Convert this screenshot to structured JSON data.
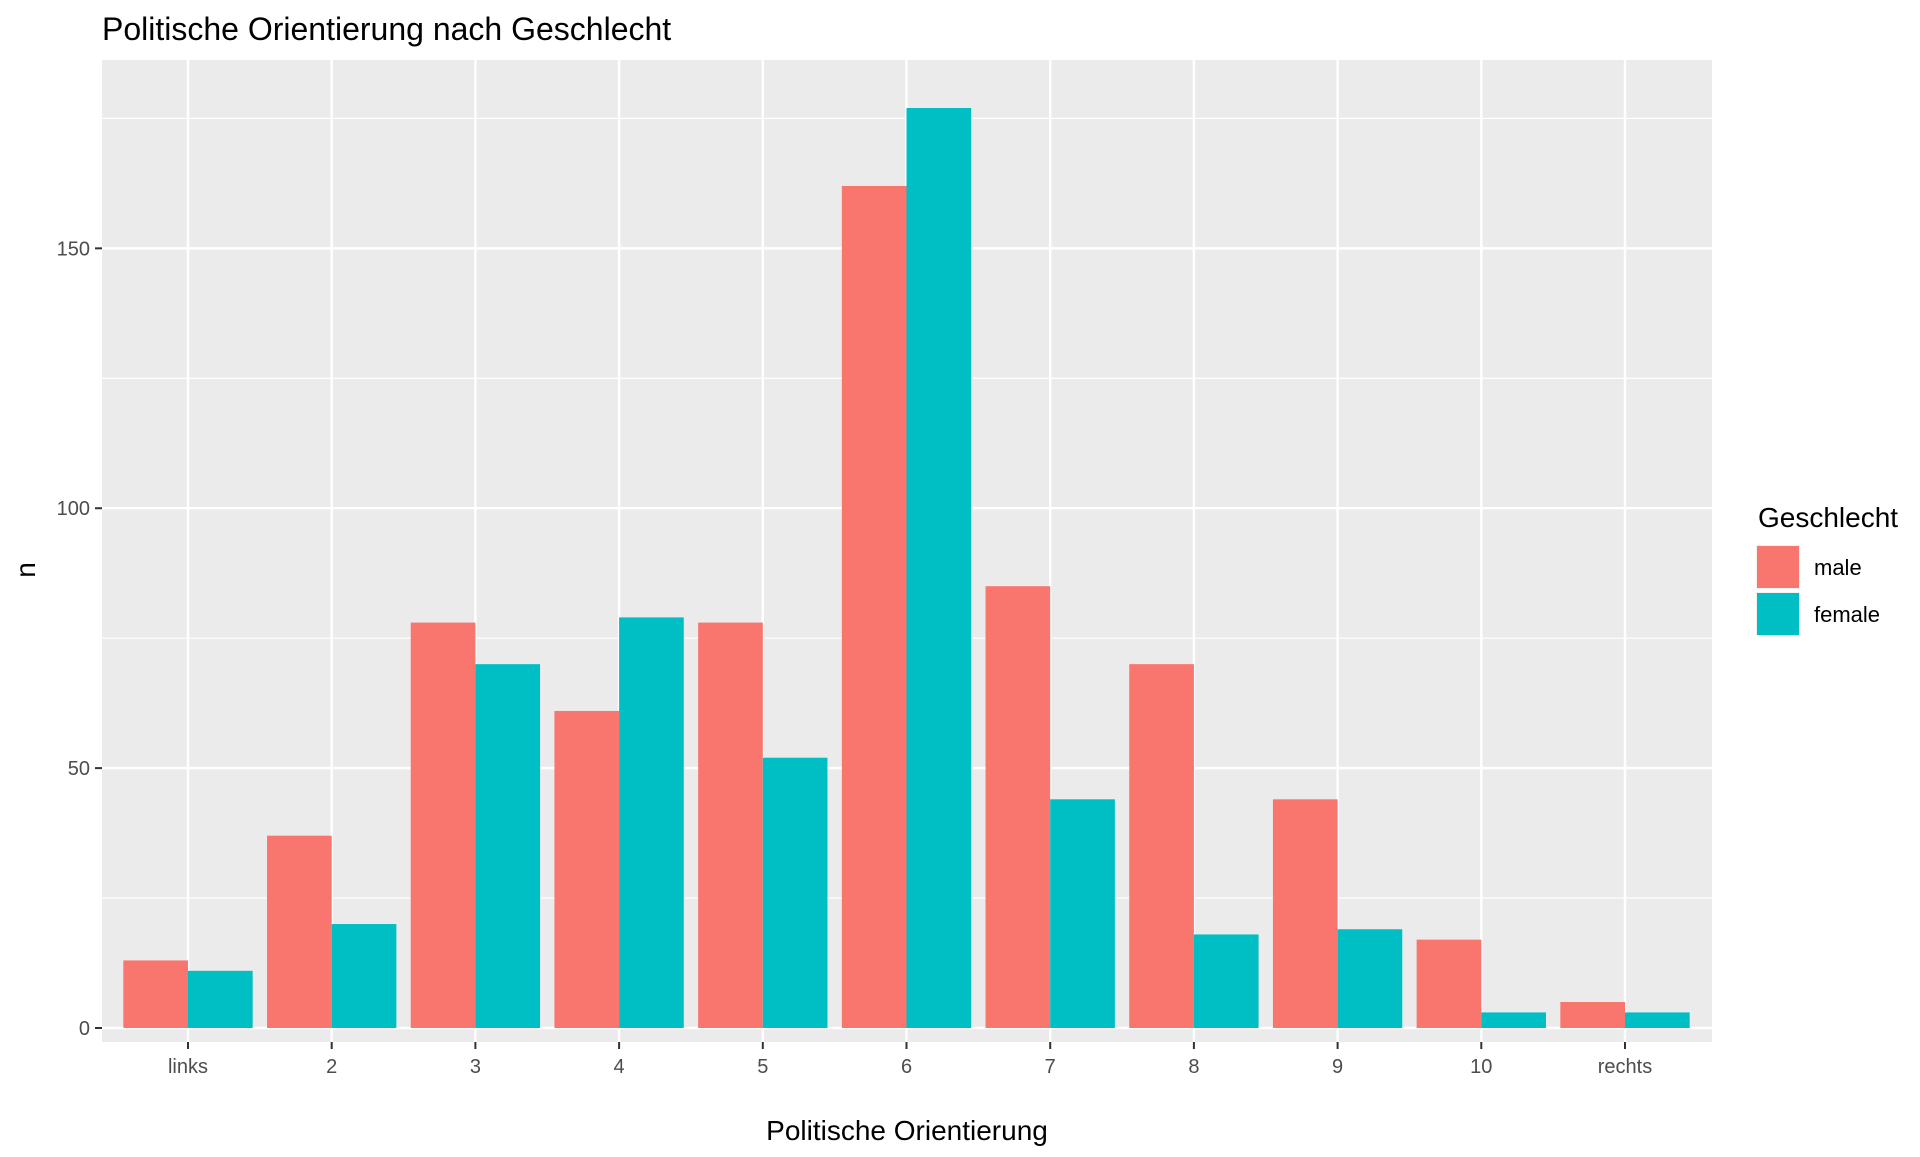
{
  "chart_data": {
    "type": "bar",
    "title": "Politische Orientierung nach Geschlecht",
    "xlabel": "Politische Orientierung",
    "ylabel": "n",
    "categories": [
      "links",
      "2",
      "3",
      "4",
      "5",
      "6",
      "7",
      "8",
      "9",
      "10",
      "rechts"
    ],
    "series": [
      {
        "name": "male",
        "color": "#F8766D",
        "values": [
          13,
          37,
          78,
          61,
          78,
          162,
          85,
          70,
          44,
          17,
          5
        ]
      },
      {
        "name": "female",
        "color": "#00BFC4",
        "values": [
          11,
          20,
          70,
          79,
          52,
          177,
          44,
          18,
          19,
          3,
          3
        ]
      }
    ],
    "ylim": [
      0,
      177
    ],
    "yticks": [
      0,
      50,
      100,
      150
    ],
    "grid": true,
    "legend": {
      "title": "Geschlecht",
      "placement": "right"
    },
    "colors": {
      "panel_background": "#EBEBEB",
      "grid": "#FFFFFF",
      "text": "#000000",
      "tick_text": "#4D4D4D"
    }
  }
}
